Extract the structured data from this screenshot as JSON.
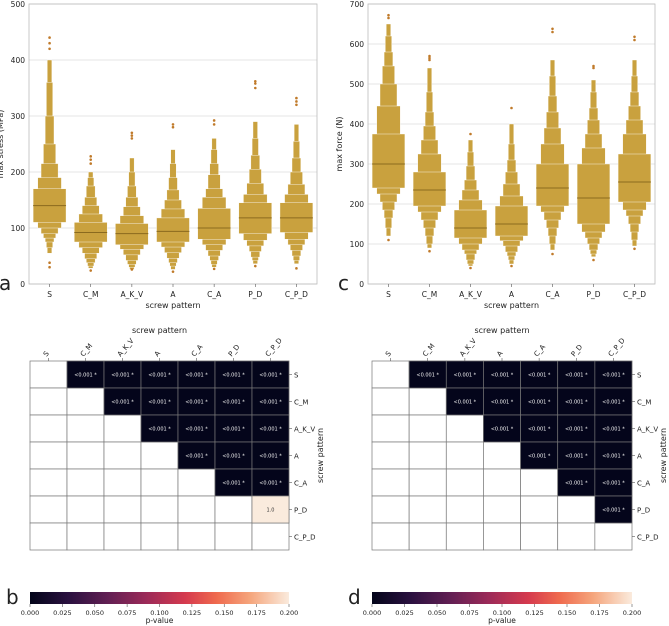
{
  "colors": {
    "boxen": "#c9a13e",
    "outlier": "#c07a2a",
    "median": "#8a6a1e",
    "grid": "#dddddd",
    "heat_low": "#03051a",
    "heat_high": "#faebdd"
  },
  "chart_data": [
    {
      "panel": "a",
      "type": "boxen",
      "title": "",
      "xlabel": "screw pattern",
      "ylabel": "max stress (MPa)",
      "categories": [
        "S",
        "C_M",
        "A_K_V",
        "A",
        "C_A",
        "P_D",
        "C_P_D"
      ],
      "ylim": [
        0,
        500
      ],
      "yticks": [
        "0",
        "100",
        "200",
        "300",
        "400",
        "500"
      ],
      "grid": true,
      "series": [
        {
          "name": "S",
          "q": [
            [
              110,
              170
            ],
            [
              100,
              190
            ],
            [
              90,
              215
            ],
            [
              82,
              250
            ],
            [
              75,
              300
            ],
            [
              65,
              360
            ],
            [
              55,
              400
            ]
          ],
          "median": 140,
          "outliers": [
            30,
            38,
            420,
            430,
            440
          ]
        },
        {
          "name": "C_M",
          "q": [
            [
              75,
              110
            ],
            [
              65,
              125
            ],
            [
              55,
              140
            ],
            [
              45,
              155
            ],
            [
              38,
              175
            ],
            [
              32,
              190
            ],
            [
              28,
              200
            ]
          ],
          "median": 92,
          "outliers": [
            24,
            215,
            222,
            228
          ]
        },
        {
          "name": "A_K_V",
          "q": [
            [
              70,
              108
            ],
            [
              62,
              122
            ],
            [
              52,
              138
            ],
            [
              42,
              155
            ],
            [
              35,
              175
            ],
            [
              30,
              200
            ],
            [
              26,
              225
            ]
          ],
          "median": 90,
          "outliers": [
            26,
            260,
            265,
            270
          ]
        },
        {
          "name": "A",
          "q": [
            [
              75,
              118
            ],
            [
              66,
              134
            ],
            [
              56,
              150
            ],
            [
              46,
              168
            ],
            [
              38,
              190
            ],
            [
              32,
              215
            ],
            [
              26,
              240
            ]
          ],
          "median": 94,
          "outliers": [
            22,
            280,
            285
          ]
        },
        {
          "name": "C_A",
          "q": [
            [
              80,
              135
            ],
            [
              70,
              155
            ],
            [
              60,
              170
            ],
            [
              50,
              195
            ],
            [
              42,
              215
            ],
            [
              35,
              240
            ],
            [
              30,
              260
            ]
          ],
          "median": 100,
          "outliers": [
            27,
            285,
            292
          ]
        },
        {
          "name": "P_D",
          "q": [
            [
              90,
              145
            ],
            [
              78,
              160
            ],
            [
              68,
              180
            ],
            [
              58,
              205
            ],
            [
              48,
              230
            ],
            [
              42,
              260
            ],
            [
              36,
              290
            ]
          ],
          "median": 118,
          "outliers": [
            32,
            350,
            358,
            362
          ]
        },
        {
          "name": "C_P_D",
          "q": [
            [
              92,
              145
            ],
            [
              80,
              160
            ],
            [
              70,
              178
            ],
            [
              60,
              200
            ],
            [
              50,
              225
            ],
            [
              42,
              255
            ],
            [
              36,
              285
            ]
          ],
          "median": 118,
          "outliers": [
            28,
            320,
            326,
            332
          ]
        }
      ]
    },
    {
      "panel": "c",
      "type": "boxen",
      "title": "",
      "xlabel": "screw pattern",
      "ylabel": "max force (N)",
      "categories": [
        "S",
        "C_M",
        "A_K_V",
        "A",
        "C_A",
        "P_D",
        "C_P_D"
      ],
      "ylim": [
        0,
        700
      ],
      "yticks": [
        "0",
        "100",
        "200",
        "300",
        "400",
        "500",
        "600",
        "700"
      ],
      "grid": true,
      "series": [
        {
          "name": "S",
          "q": [
            [
              240,
              375
            ],
            [
              225,
              445
            ],
            [
              205,
              500
            ],
            [
              185,
              545
            ],
            [
              165,
              580
            ],
            [
              140,
              620
            ],
            [
              120,
              650
            ]
          ],
          "median": 300,
          "outliers": [
            110,
            665,
            672
          ]
        },
        {
          "name": "C_M",
          "q": [
            [
              195,
              280
            ],
            [
              180,
              325
            ],
            [
              160,
              360
            ],
            [
              140,
              395
            ],
            [
              120,
              430
            ],
            [
              100,
              480
            ],
            [
              90,
              540
            ]
          ],
          "median": 235,
          "outliers": [
            82,
            560,
            565,
            570
          ]
        },
        {
          "name": "A_K_V",
          "q": [
            [
              115,
              185
            ],
            [
              100,
              210
            ],
            [
              85,
              235
            ],
            [
              75,
              260
            ],
            [
              60,
              295
            ],
            [
              50,
              330
            ],
            [
              45,
              360
            ]
          ],
          "median": 140,
          "outliers": [
            40,
            375
          ]
        },
        {
          "name": "A",
          "q": [
            [
              120,
              195
            ],
            [
              108,
              220
            ],
            [
              95,
              250
            ],
            [
              80,
              280
            ],
            [
              70,
              310
            ],
            [
              60,
              350
            ],
            [
              50,
              400
            ]
          ],
          "median": 150,
          "outliers": [
            45,
            440
          ]
        },
        {
          "name": "C_A",
          "q": [
            [
              195,
              300
            ],
            [
              180,
              350
            ],
            [
              160,
              390
            ],
            [
              140,
              430
            ],
            [
              120,
              470
            ],
            [
              100,
              520
            ],
            [
              85,
              560
            ]
          ],
          "median": 240,
          "outliers": [
            75,
            630,
            638
          ]
        },
        {
          "name": "P_D",
          "q": [
            [
              150,
              300
            ],
            [
              130,
              340
            ],
            [
              115,
              375
            ],
            [
              100,
              410
            ],
            [
              85,
              440
            ],
            [
              75,
              480
            ],
            [
              68,
              510
            ]
          ],
          "median": 215,
          "outliers": [
            60,
            540,
            545
          ]
        },
        {
          "name": "C_P_D",
          "q": [
            [
              205,
              325
            ],
            [
              185,
              375
            ],
            [
              170,
              410
            ],
            [
              150,
              445
            ],
            [
              130,
              480
            ],
            [
              110,
              520
            ],
            [
              95,
              560
            ]
          ],
          "median": 255,
          "outliers": [
            88,
            610,
            618
          ]
        }
      ]
    },
    {
      "panel": "b",
      "type": "heatmap",
      "title": "screw pattern",
      "xlabel": "screw pattern",
      "ylabel": "screw pattern",
      "categories": [
        "S",
        "C_M",
        "A_K_V",
        "A",
        "C_A",
        "P_D",
        "C_P_D"
      ],
      "colorbar_label": "p-value",
      "colorbar_range": [
        0,
        0.2
      ],
      "colorbar_ticks": [
        "0.000",
        "0.025",
        "0.050",
        "0.075",
        "0.100",
        "0.125",
        "0.150",
        "0.175",
        "0.200"
      ],
      "cells": [
        {
          "row": 0,
          "col": 1,
          "value": 0.0005,
          "label": "<0.001 *"
        },
        {
          "row": 0,
          "col": 2,
          "value": 0.0005,
          "label": "<0.001 *"
        },
        {
          "row": 0,
          "col": 3,
          "value": 0.0005,
          "label": "<0.001 *"
        },
        {
          "row": 0,
          "col": 4,
          "value": 0.0005,
          "label": "<0.001 *"
        },
        {
          "row": 0,
          "col": 5,
          "value": 0.0005,
          "label": "<0.001 *"
        },
        {
          "row": 0,
          "col": 6,
          "value": 0.0005,
          "label": "<0.001 *"
        },
        {
          "row": 1,
          "col": 2,
          "value": 0.0005,
          "label": "<0.001 *"
        },
        {
          "row": 1,
          "col": 3,
          "value": 0.0005,
          "label": "<0.001 *"
        },
        {
          "row": 1,
          "col": 4,
          "value": 0.0005,
          "label": "<0.001 *"
        },
        {
          "row": 1,
          "col": 5,
          "value": 0.0005,
          "label": "<0.001 *"
        },
        {
          "row": 1,
          "col": 6,
          "value": 0.0005,
          "label": "<0.001 *"
        },
        {
          "row": 2,
          "col": 3,
          "value": 0.0005,
          "label": "<0.001 *"
        },
        {
          "row": 2,
          "col": 4,
          "value": 0.0005,
          "label": "<0.001 *"
        },
        {
          "row": 2,
          "col": 5,
          "value": 0.0005,
          "label": "<0.001 *"
        },
        {
          "row": 2,
          "col": 6,
          "value": 0.0005,
          "label": "<0.001 *"
        },
        {
          "row": 3,
          "col": 4,
          "value": 0.0005,
          "label": "<0.001 *"
        },
        {
          "row": 3,
          "col": 5,
          "value": 0.0005,
          "label": "<0.001 *"
        },
        {
          "row": 3,
          "col": 6,
          "value": 0.0005,
          "label": "<0.001 *"
        },
        {
          "row": 4,
          "col": 5,
          "value": 0.0005,
          "label": "<0.001 *"
        },
        {
          "row": 4,
          "col": 6,
          "value": 0.0005,
          "label": "<0.001 *"
        },
        {
          "row": 5,
          "col": 6,
          "value": 1.0,
          "label": "1.0"
        }
      ]
    },
    {
      "panel": "d",
      "type": "heatmap",
      "title": "screw pattern",
      "xlabel": "screw pattern",
      "ylabel": "screw pattern",
      "categories": [
        "S",
        "C_M",
        "A_K_V",
        "A",
        "C_A",
        "P_D",
        "C_P_D"
      ],
      "colorbar_label": "p-value",
      "colorbar_range": [
        0,
        0.2
      ],
      "colorbar_ticks": [
        "0.000",
        "0.025",
        "0.050",
        "0.075",
        "0.100",
        "0.125",
        "0.150",
        "0.175",
        "0.200"
      ],
      "cells": [
        {
          "row": 0,
          "col": 1,
          "value": 0.0005,
          "label": "<0.001 *"
        },
        {
          "row": 0,
          "col": 2,
          "value": 0.0005,
          "label": "<0.001 *"
        },
        {
          "row": 0,
          "col": 3,
          "value": 0.0005,
          "label": "<0.001 *"
        },
        {
          "row": 0,
          "col": 4,
          "value": 0.0005,
          "label": "<0.001 *"
        },
        {
          "row": 0,
          "col": 5,
          "value": 0.0005,
          "label": "<0.001 *"
        },
        {
          "row": 0,
          "col": 6,
          "value": 0.0005,
          "label": "<0.001 *"
        },
        {
          "row": 1,
          "col": 2,
          "value": 0.0005,
          "label": "<0.001 *"
        },
        {
          "row": 1,
          "col": 3,
          "value": 0.0005,
          "label": "<0.001 *"
        },
        {
          "row": 1,
          "col": 4,
          "value": 0.0005,
          "label": "<0.001 *"
        },
        {
          "row": 1,
          "col": 5,
          "value": 0.0005,
          "label": "<0.001 *"
        },
        {
          "row": 1,
          "col": 6,
          "value": 0.0005,
          "label": "<0.001 *"
        },
        {
          "row": 2,
          "col": 3,
          "value": 0.0005,
          "label": "<0.001 *"
        },
        {
          "row": 2,
          "col": 4,
          "value": 0.0005,
          "label": "<0.001 *"
        },
        {
          "row": 2,
          "col": 5,
          "value": 0.0005,
          "label": "<0.001 *"
        },
        {
          "row": 2,
          "col": 6,
          "value": 0.0005,
          "label": "<0.001 *"
        },
        {
          "row": 3,
          "col": 4,
          "value": 0.0005,
          "label": "<0.001 *"
        },
        {
          "row": 3,
          "col": 5,
          "value": 0.0005,
          "label": "<0.001 *"
        },
        {
          "row": 3,
          "col": 6,
          "value": 0.0005,
          "label": "<0.001 *"
        },
        {
          "row": 4,
          "col": 5,
          "value": 0.0005,
          "label": "<0.001 *"
        },
        {
          "row": 4,
          "col": 6,
          "value": 0.0005,
          "label": "<0.001 *"
        },
        {
          "row": 5,
          "col": 6,
          "value": 0.0005,
          "label": "<0.001 *"
        }
      ]
    }
  ]
}
